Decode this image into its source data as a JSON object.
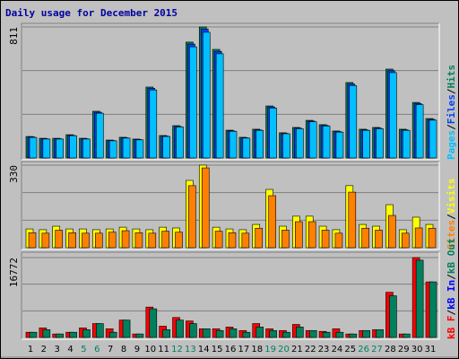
{
  "chart_data": [
    {
      "type": "bar",
      "title": "Daily usage for December 2015",
      "ylim": [
        0,
        811
      ],
      "yticks": [
        811
      ],
      "legend_separator": "/",
      "legend_reversed": true,
      "series": [
        {
          "name": "Hits",
          "color": "#00805c",
          "values": [
            133,
            122,
            122,
            144,
            122,
            289,
            111,
            128,
            117,
            439,
            139,
            200,
            717,
            811,
            672,
            172,
            128,
            178,
            322,
            156,
            189,
            233,
            206,
            167,
            467,
            178,
            189,
            550,
            178,
            344,
            244
          ]
        },
        {
          "name": "Files",
          "color": "#0040ff",
          "values": [
            130,
            119,
            119,
            140,
            119,
            283,
            108,
            125,
            114,
            431,
            136,
            195,
            705,
            798,
            660,
            168,
            125,
            174,
            316,
            152,
            185,
            228,
            202,
            163,
            458,
            174,
            185,
            540,
            174,
            337,
            239
          ]
        },
        {
          "name": "Pages",
          "color": "#00c0ff",
          "values": [
            127,
            117,
            117,
            138,
            117,
            277,
            106,
            123,
            112,
            421,
            133,
            192,
            688,
            778,
            645,
            165,
            123,
            171,
            309,
            150,
            181,
            224,
            198,
            160,
            448,
            171,
            181,
            528,
            171,
            330,
            234
          ]
        }
      ]
    },
    {
      "type": "bar",
      "ylim": [
        0,
        330
      ],
      "yticks": [
        330
      ],
      "legend_separator": "/",
      "legend_reversed": true,
      "series": [
        {
          "name": "Visits",
          "color": "#ffff00",
          "values": [
            75,
            72,
            86,
            75,
            75,
            72,
            75,
            82,
            75,
            72,
            82,
            79,
            269,
            330,
            82,
            75,
            72,
            93,
            233,
            86,
            126,
            126,
            86,
            72,
            248,
            93,
            86,
            172,
            72,
            122,
            93
          ]
        },
        {
          "name": "Sites",
          "color": "#ff8000",
          "values": [
            60,
            58,
            70,
            60,
            58,
            58,
            62,
            68,
            60,
            58,
            66,
            62,
            248,
            319,
            66,
            60,
            58,
            78,
            208,
            70,
            104,
            104,
            70,
            58,
            222,
            78,
            70,
            129,
            58,
            79,
            78
          ]
        }
      ]
    },
    {
      "type": "bar",
      "ylim": [
        0,
        16772
      ],
      "yticks": [
        16772
      ],
      "legend_separator": "/",
      "legend_reversed": false,
      "categories": [
        "1",
        "2",
        "3",
        "4",
        "5",
        "6",
        "7",
        "8",
        "9",
        "10",
        "11",
        "12",
        "13",
        "14",
        "15",
        "16",
        "17",
        "18",
        "19",
        "20",
        "21",
        "22",
        "23",
        "24",
        "25",
        "26",
        "27",
        "28",
        "29",
        "30",
        "31"
      ],
      "category_colors": [
        "#000000",
        "#000000",
        "#000000",
        "#000000",
        "#00805c",
        "#00805c",
        "#000000",
        "#000000",
        "#000000",
        "#000000",
        "#000000",
        "#00805c",
        "#00805c",
        "#000000",
        "#000000",
        "#000000",
        "#000000",
        "#000000",
        "#00805c",
        "#00805c",
        "#000000",
        "#000000",
        "#000000",
        "#000000",
        "#000000",
        "#00805c",
        "#00805c",
        "#000000",
        "#000000",
        "#000000",
        "#000000"
      ],
      "series": [
        {
          "name": "kB F",
          "color": "#ff0000",
          "values": [
            1094,
            2005,
            729,
            1094,
            2005,
            2917,
            1823,
            3646,
            729,
            6381,
            2370,
            4193,
            3464,
            1823,
            1823,
            2188,
            1458,
            2917,
            1823,
            1458,
            2734,
            1458,
            1276,
            1823,
            729,
            1458,
            1641,
            9480,
            729,
            16772,
            11667
          ]
        },
        {
          "name": "kB In",
          "color": "#0000ff"
        },
        {
          "name": "kB Out",
          "color": "#00805c",
          "values": [
            1094,
            1641,
            729,
            1094,
            1641,
            2917,
            1094,
            3646,
            729,
            6016,
            1641,
            3646,
            2917,
            1823,
            1458,
            1823,
            1094,
            2188,
            1458,
            1094,
            2188,
            1458,
            1094,
            1094,
            729,
            1458,
            1641,
            8751,
            729,
            16225,
            11667
          ]
        }
      ]
    }
  ]
}
